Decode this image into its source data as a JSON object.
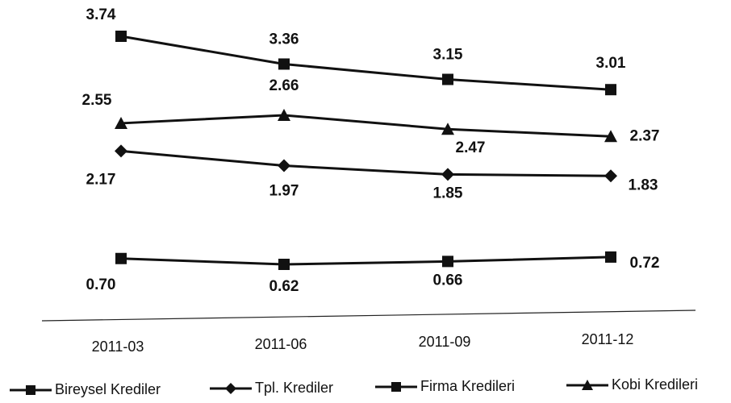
{
  "chart_data": {
    "type": "line",
    "categories": [
      "2011-03",
      "2011-06",
      "2011-09",
      "2011-12"
    ],
    "series": [
      {
        "name": "Bireysel Krediler",
        "color": "#111111",
        "marker": "square",
        "values": [
          3.74,
          3.36,
          3.15,
          3.01
        ],
        "value_labels": [
          "3.74",
          "3.36",
          "3.15",
          "3.01"
        ]
      },
      {
        "name": "Tpl. Krediler",
        "color": "#111111",
        "marker": "diamond",
        "values": [
          2.17,
          1.97,
          1.85,
          1.83
        ],
        "value_labels": [
          "2.17",
          "1.97",
          "1.85",
          "1.83"
        ]
      },
      {
        "name": "Firma Kredileri",
        "color": "#111111",
        "marker": "square",
        "values": [
          0.7,
          0.62,
          0.66,
          0.72
        ],
        "value_labels": [
          "0.70",
          "0.62",
          "0.66",
          "0.72"
        ]
      },
      {
        "name": "Kobi Kredileri",
        "color": "#111111",
        "marker": "triangle",
        "values": [
          2.55,
          2.66,
          2.47,
          2.37
        ],
        "value_labels": [
          "2.55",
          "2.66",
          "2.47",
          "2.37"
        ]
      }
    ]
  }
}
